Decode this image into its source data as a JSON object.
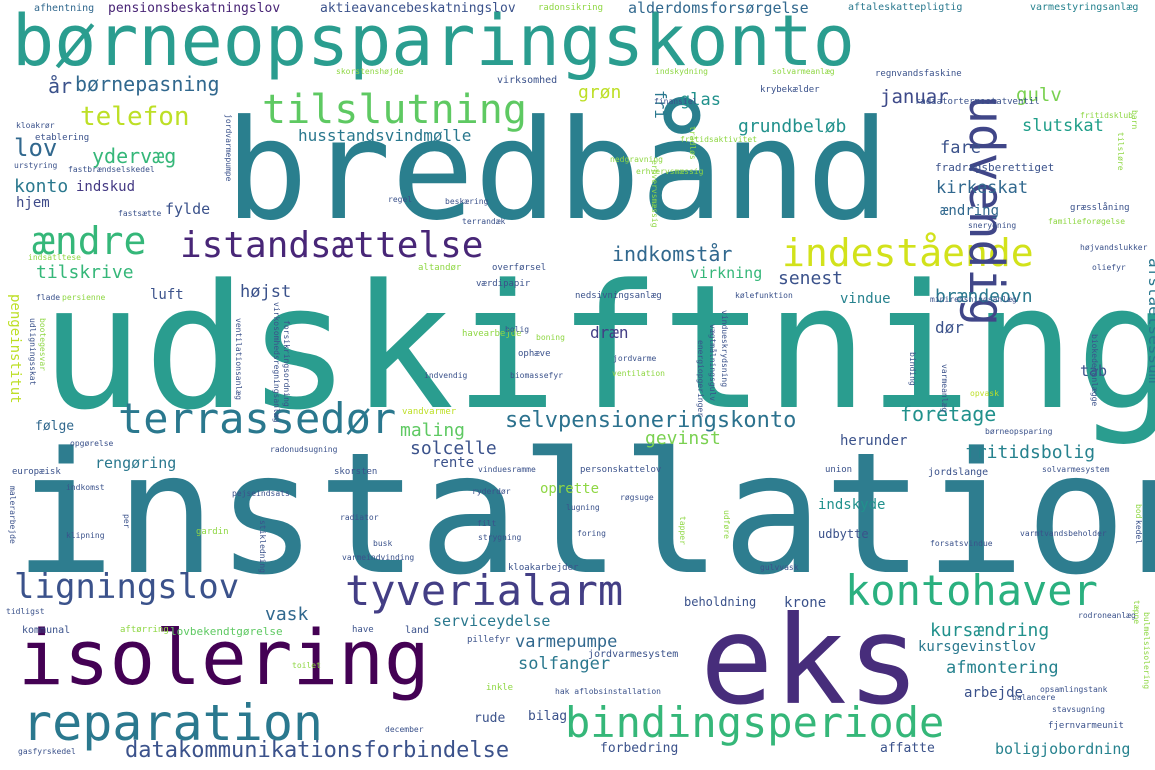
{
  "palette": {
    "background": "#ffffff",
    "c1": "#440154",
    "c2": "#3b528b",
    "c3": "#21918c",
    "c4": "#2a9d8f",
    "c5": "#35b779",
    "c6": "#5ec962",
    "c7": "#8fd744",
    "c8": "#bddf26",
    "c9": "#fde725"
  },
  "words": [
    {
      "text": "udskiftning",
      "color": "#2a9d8f"
    },
    {
      "text": "installation",
      "color": "#2e7d8f"
    },
    {
      "text": "bredbånd",
      "color": "#2a7f8e"
    },
    {
      "text": "eks",
      "color": "#472d7b"
    },
    {
      "text": "børneopsparingskonto",
      "color": "#2a9d8f"
    },
    {
      "text": "isolering",
      "color": "#440154"
    },
    {
      "text": "reparation",
      "color": "#2a788e"
    },
    {
      "text": "bindingsperiode",
      "color": "#35b779"
    },
    {
      "text": "kontohaver",
      "color": "#2ab07f"
    },
    {
      "text": "tyverialarm",
      "color": "#433e85"
    },
    {
      "text": "ligningslov",
      "color": "#3b528b"
    },
    {
      "text": "istandsættelse",
      "color": "#482677"
    },
    {
      "text": "indestående",
      "color": "#d2e21b"
    },
    {
      "text": "udvendig",
      "color": "#404688"
    },
    {
      "text": "tilslutning",
      "color": "#5ec962"
    },
    {
      "text": "terrassedør",
      "color": "#2a788e"
    },
    {
      "text": "ændre",
      "color": "#35b779"
    },
    {
      "text": "selvpensioneringskonto",
      "color": "#2c728e"
    },
    {
      "text": "datakommunikationsforbindelse",
      "color": "#3b528b"
    },
    {
      "text": "telefon",
      "color": "#bddf26"
    },
    {
      "text": "børnepasning",
      "color": "#31688e"
    },
    {
      "text": "pensionsbeskatningslov",
      "color": "#482475"
    },
    {
      "text": "aktieavancebeskatningslov",
      "color": "#3b528b"
    },
    {
      "text": "alderdomsforsørgelse",
      "color": "#31688e"
    },
    {
      "text": "radonsikring",
      "color": "#8fd744"
    },
    {
      "text": "afhentning",
      "color": "#31688e"
    },
    {
      "text": "aftaleskattepligtig",
      "color": "#2a788e"
    },
    {
      "text": "varmestyringsanlæg",
      "color": "#26828e"
    },
    {
      "text": "år",
      "color": "#3b528b"
    },
    {
      "text": "lov",
      "color": "#31688e"
    },
    {
      "text": "ydervæg",
      "color": "#35b779"
    },
    {
      "text": "konto",
      "color": "#2a788e"
    },
    {
      "text": "indskud",
      "color": "#443983"
    },
    {
      "text": "hjem",
      "color": "#3e4a89"
    },
    {
      "text": "fylde",
      "color": "#3b528b"
    },
    {
      "text": "tilskrive",
      "color": "#35b779"
    },
    {
      "text": "luft",
      "color": "#3b528b"
    },
    {
      "text": "højst",
      "color": "#3b528b"
    },
    {
      "text": "grøn",
      "color": "#bddf26"
    },
    {
      "text": "fri",
      "color": "#2a788e"
    },
    {
      "text": "glas",
      "color": "#21918c"
    },
    {
      "text": "grundbeløb",
      "color": "#21918c"
    },
    {
      "text": "januar",
      "color": "#3e4a89"
    },
    {
      "text": "gulv",
      "color": "#7ad151"
    },
    {
      "text": "slutskat",
      "color": "#1f9e89"
    },
    {
      "text": "fare",
      "color": "#3b528b"
    },
    {
      "text": "fradragsberettiget",
      "color": "#3b528b"
    },
    {
      "text": "kirkeskat",
      "color": "#31688e"
    },
    {
      "text": "ændring",
      "color": "#31688e"
    },
    {
      "text": "afståelsessum",
      "color": "#2a788e"
    },
    {
      "text": "indkomstår",
      "color": "#31688e"
    },
    {
      "text": "senest",
      "color": "#3b528b"
    },
    {
      "text": "virkning",
      "color": "#35b779"
    },
    {
      "text": "brændeovn",
      "color": "#2a788e"
    },
    {
      "text": "vindue",
      "color": "#26828e"
    },
    {
      "text": "dør",
      "color": "#3b528b"
    },
    {
      "text": "dræn",
      "color": "#433e85"
    },
    {
      "text": "tab",
      "color": "#3b528b"
    },
    {
      "text": "husstandsvindmølle",
      "color": "#2a788e"
    },
    {
      "text": "maling",
      "color": "#5ec962"
    },
    {
      "text": "gevinst",
      "color": "#7ad151"
    },
    {
      "text": "solcelle",
      "color": "#3b528b"
    },
    {
      "text": "rengøring",
      "color": "#2a788e"
    },
    {
      "text": "rente",
      "color": "#3b528b"
    },
    {
      "text": "herunder",
      "color": "#3b528b"
    },
    {
      "text": "foretage",
      "color": "#21918c"
    },
    {
      "text": "fritidsbolig",
      "color": "#26828e"
    },
    {
      "text": "følge",
      "color": "#31688e"
    },
    {
      "text": "indskyde",
      "color": "#21918c"
    },
    {
      "text": "oprette",
      "color": "#8fd744"
    },
    {
      "text": "udbytte",
      "color": "#3b528b"
    },
    {
      "text": "krone",
      "color": "#3b528b"
    },
    {
      "text": "vask",
      "color": "#31688e"
    },
    {
      "text": "beholdning",
      "color": "#3b528b"
    },
    {
      "text": "kursændring",
      "color": "#21918c"
    },
    {
      "text": "kursgevinstlov",
      "color": "#2a788e"
    },
    {
      "text": "serviceydelse",
      "color": "#2a788e"
    },
    {
      "text": "varmepumpe",
      "color": "#31688e"
    },
    {
      "text": "jordvarmesystem",
      "color": "#3b528b"
    },
    {
      "text": "afmontering",
      "color": "#26828e"
    },
    {
      "text": "solfanger",
      "color": "#2a788e"
    },
    {
      "text": "arbejde",
      "color": "#3b528b"
    },
    {
      "text": "rude",
      "color": "#3b528b"
    },
    {
      "text": "bilag",
      "color": "#3b528b"
    },
    {
      "text": "forbedring",
      "color": "#3b528b"
    },
    {
      "text": "affatte",
      "color": "#3b528b"
    },
    {
      "text": "boligjobordning",
      "color": "#26828e"
    },
    {
      "text": "fjernvarmeunit",
      "color": "#3b528b"
    },
    {
      "text": "pengeinstitut",
      "color": "#bddf26"
    },
    {
      "text": "kommunal",
      "color": "#3b528b"
    },
    {
      "text": "aftørring",
      "color": "#8fd744"
    },
    {
      "text": "lovbekendtgørelse",
      "color": "#5ec962"
    },
    {
      "text": "have",
      "color": "#3b528b"
    },
    {
      "text": "land",
      "color": "#3b528b"
    },
    {
      "text": "pillefyr",
      "color": "#3b528b"
    },
    {
      "text": "skorstenshøjde",
      "color": "#8fd744"
    },
    {
      "text": "indskydning",
      "color": "#8fd744"
    },
    {
      "text": "solvarmeanlæg",
      "color": "#8fd744"
    },
    {
      "text": "regnvandsfaskine",
      "color": "#3b528b"
    },
    {
      "text": "virksomhed",
      "color": "#3b528b"
    },
    {
      "text": "krybekælder",
      "color": "#3b528b"
    },
    {
      "text": "finansiel",
      "color": "#3b528b"
    },
    {
      "text": "radiatortermostatventil",
      "color": "#3b528b"
    },
    {
      "text": "fritidsklub",
      "color": "#8fd744"
    },
    {
      "text": "fritidsaktivitet",
      "color": "#8fd744"
    },
    {
      "text": "kloakrør",
      "color": "#3b528b"
    },
    {
      "text": "etablering",
      "color": "#3b528b"
    },
    {
      "text": "urstyring",
      "color": "#3b528b"
    },
    {
      "text": "fastbrændselskedel",
      "color": "#3b528b"
    },
    {
      "text": "fastsætte",
      "color": "#3b528b"
    },
    {
      "text": "regel",
      "color": "#3b528b"
    },
    {
      "text": "beskæring",
      "color": "#3b528b"
    },
    {
      "text": "terrandæk",
      "color": "#3b528b"
    },
    {
      "text": "nedgravning",
      "color": "#8fd744"
    },
    {
      "text": "erhvervsmæssig",
      "color": "#8fd744"
    },
    {
      "text": "familieforøgelse",
      "color": "#8fd744"
    },
    {
      "text": "snerydning",
      "color": "#3b528b"
    },
    {
      "text": "græsslåning",
      "color": "#3b528b"
    },
    {
      "text": "oliefyr",
      "color": "#3b528b"
    },
    {
      "text": "altandør",
      "color": "#8fd744"
    },
    {
      "text": "overførsel",
      "color": "#3b528b"
    },
    {
      "text": "værdipapir",
      "color": "#3b528b"
    },
    {
      "text": "nedsivningsanlæg",
      "color": "#3b528b"
    },
    {
      "text": "kølefunktion",
      "color": "#3b528b"
    },
    {
      "text": "minirensningsanlæg",
      "color": "#3b528b"
    },
    {
      "text": "højvandslukker",
      "color": "#3b528b"
    },
    {
      "text": "indsatltese",
      "color": "#8fd744"
    },
    {
      "text": "flade",
      "color": "#3b528b"
    },
    {
      "text": "persienne",
      "color": "#8fd744"
    },
    {
      "text": "havearbejde",
      "color": "#8fd744"
    },
    {
      "text": "bolig",
      "color": "#3b528b"
    },
    {
      "text": "boning",
      "color": "#8fd744"
    },
    {
      "text": "ophæve",
      "color": "#3b528b"
    },
    {
      "text": "jordvarme",
      "color": "#3b528b"
    },
    {
      "text": "indvendig",
      "color": "#3b528b"
    },
    {
      "text": "biomassefyr",
      "color": "#3b528b"
    },
    {
      "text": "ventilation",
      "color": "#8fd744"
    },
    {
      "text": "vandvarmer",
      "color": "#bddf26"
    },
    {
      "text": "opvask",
      "color": "#bddf26"
    },
    {
      "text": "børneopsparing",
      "color": "#3b528b"
    },
    {
      "text": "opgørelse",
      "color": "#3b528b"
    },
    {
      "text": "radonudsugning",
      "color": "#3b528b"
    },
    {
      "text": "europæisk",
      "color": "#3b528b"
    },
    {
      "text": "skorsten",
      "color": "#3b528b"
    },
    {
      "text": "vinduesramme",
      "color": "#3b528b"
    },
    {
      "text": "personskattelov",
      "color": "#3b528b"
    },
    {
      "text": "union",
      "color": "#3b528b"
    },
    {
      "text": "jordslange",
      "color": "#3b528b"
    },
    {
      "text": "solvarmesystem",
      "color": "#3b528b"
    },
    {
      "text": "indkomst",
      "color": "#3b528b"
    },
    {
      "text": "pejseindsats",
      "color": "#3b528b"
    },
    {
      "text": "radiator",
      "color": "#3b528b"
    },
    {
      "text": "ryderdør",
      "color": "#3b528b"
    },
    {
      "text": "røgsuge",
      "color": "#3b528b"
    },
    {
      "text": "lugning",
      "color": "#3b528b"
    },
    {
      "text": "gardin",
      "color": "#8fd744"
    },
    {
      "text": "klipning",
      "color": "#3b528b"
    },
    {
      "text": "busk",
      "color": "#3b528b"
    },
    {
      "text": "filt",
      "color": "#3b528b"
    },
    {
      "text": "strygning",
      "color": "#3b528b"
    },
    {
      "text": "foring",
      "color": "#3b528b"
    },
    {
      "text": "varmeindvinding",
      "color": "#3b528b"
    },
    {
      "text": "kloakarbejder",
      "color": "#3b528b"
    },
    {
      "text": "forsatsvindue",
      "color": "#3b528b"
    },
    {
      "text": "varmtvandsbeholder",
      "color": "#3b528b"
    },
    {
      "text": "gulvvask",
      "color": "#3b528b"
    },
    {
      "text": "rodroneanlæg",
      "color": "#3b528b"
    },
    {
      "text": "tidligst",
      "color": "#3b528b"
    },
    {
      "text": "toilet",
      "color": "#8fd744"
    },
    {
      "text": "inkle",
      "color": "#8fd744"
    },
    {
      "text": "hak aflobsinstallation",
      "color": "#3b528b"
    },
    {
      "text": "opsamlingstank",
      "color": "#3b528b"
    },
    {
      "text": "balancere",
      "color": "#3b528b"
    },
    {
      "text": "stavsugning",
      "color": "#3b528b"
    },
    {
      "text": "december",
      "color": "#3b528b"
    },
    {
      "text": "gasfyrskedel",
      "color": "#3b528b"
    },
    {
      "text": "bod",
      "color": "#8fd744"
    },
    {
      "text": "kedel",
      "color": "#3b528b"
    },
    {
      "text": "bulmelsisolering",
      "color": "#8fd744"
    },
    {
      "text": "tæpne",
      "color": "#8fd744"
    },
    {
      "text": "malerarbejde",
      "color": "#3b528b"
    },
    {
      "text": "stikledning",
      "color": "#3b528b"
    },
    {
      "text": "vægtmålningsgulv",
      "color": "#3b528b"
    },
    {
      "text": "binding",
      "color": "#3b528b"
    },
    {
      "text": "varmeanlæg",
      "color": "#3b528b"
    },
    {
      "text": "biokedelanlægge",
      "color": "#3b528b"
    },
    {
      "text": "tapper",
      "color": "#8fd744"
    },
    {
      "text": "barn",
      "color": "#8fd744"
    },
    {
      "text": "jordvarmepumpe",
      "color": "#3b528b"
    },
    {
      "text": "trådløs",
      "color": "#8fd744"
    },
    {
      "text": "erhvervsmæssig",
      "color": "#8fd744"
    },
    {
      "text": "vindueskrydsning",
      "color": "#3b528b"
    },
    {
      "text": "ventilationsanlæg",
      "color": "#3b528b"
    },
    {
      "text": "forsikringsordning",
      "color": "#3b528b"
    },
    {
      "text": "virkosomhedsregningsanlæg",
      "color": "#3b528b"
    },
    {
      "text": "energiopgeringer",
      "color": "#3b528b"
    },
    {
      "text": "bootegesvar",
      "color": "#8fd744"
    },
    {
      "text": "udligningsskat",
      "color": "#3b528b"
    },
    {
      "text": "udføre",
      "color": "#8fd744"
    },
    {
      "text": "per",
      "color": "#3b528b"
    },
    {
      "text": "tilsløre",
      "color": "#8fd744"
    }
  ]
}
